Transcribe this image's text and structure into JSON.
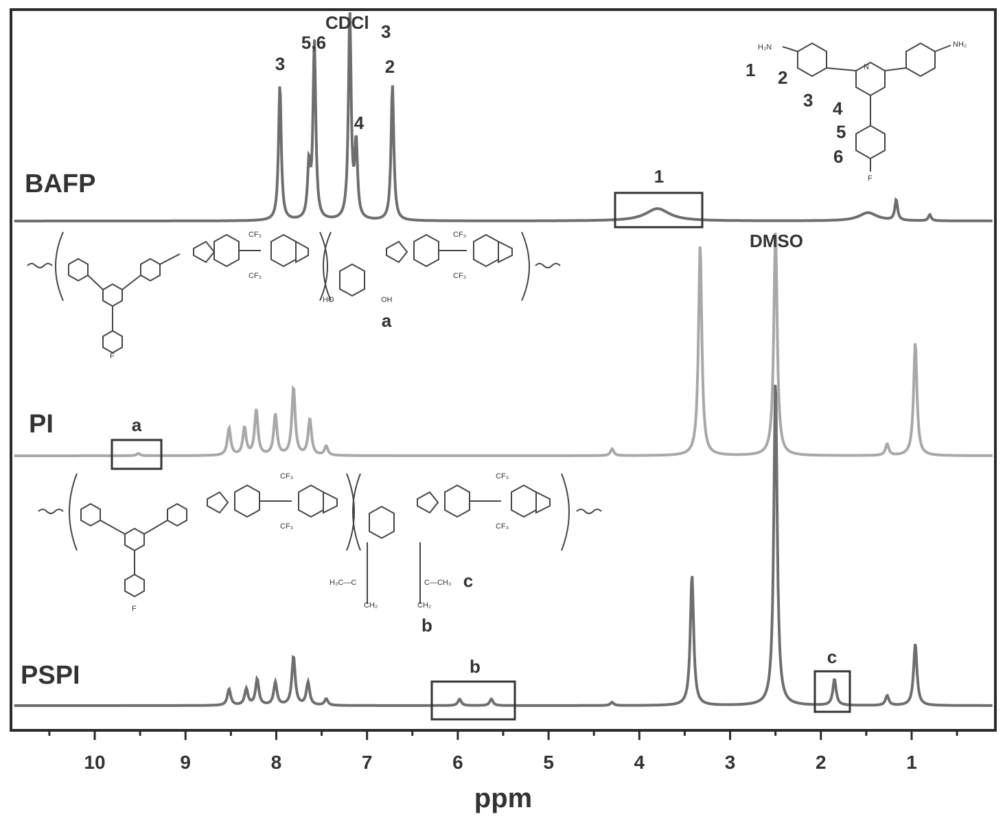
{
  "chart_data": {
    "type": "line",
    "title": "",
    "xlabel": "ppm",
    "ylabel": "",
    "x_reversed": true,
    "xlim": [
      10.95,
      0.0
    ],
    "x_ticks": [
      10,
      9,
      8,
      7,
      6,
      5,
      4,
      3,
      2,
      1
    ],
    "grid": false,
    "legend": "none",
    "series": [
      {
        "name": "BAFP",
        "color": "#6e6e6e",
        "solvent": "CDCl3",
        "peaks": [
          {
            "ppm": 7.96,
            "height": 0.66,
            "label": "3"
          },
          {
            "ppm": 7.58,
            "height": 0.86,
            "label": "5,6"
          },
          {
            "ppm": 7.64,
            "height": 0.25,
            "label": ""
          },
          {
            "ppm": 7.19,
            "height": 1.0,
            "label": "CDCl3"
          },
          {
            "ppm": 7.12,
            "height": 0.36,
            "label": "4"
          },
          {
            "ppm": 6.72,
            "height": 0.66,
            "label": "2"
          },
          {
            "ppm": 3.8,
            "height": 0.06,
            "label": "1"
          },
          {
            "ppm": 1.48,
            "height": 0.04,
            "label": ""
          },
          {
            "ppm": 1.17,
            "height": 0.1,
            "label": ""
          },
          {
            "ppm": 0.8,
            "height": 0.03,
            "label": ""
          }
        ]
      },
      {
        "name": "PI",
        "color": "#a8a8a8",
        "solvent": "DMSO",
        "peaks": [
          {
            "ppm": 9.52,
            "height": 0.01,
            "label": "a"
          },
          {
            "ppm": 8.52,
            "height": 0.12,
            "label": ""
          },
          {
            "ppm": 8.35,
            "height": 0.12,
            "label": ""
          },
          {
            "ppm": 8.22,
            "height": 0.2,
            "label": ""
          },
          {
            "ppm": 8.01,
            "height": 0.18,
            "label": ""
          },
          {
            "ppm": 7.81,
            "height": 0.3,
            "label": ""
          },
          {
            "ppm": 7.63,
            "height": 0.16,
            "label": ""
          },
          {
            "ppm": 7.45,
            "height": 0.04,
            "label": ""
          },
          {
            "ppm": 4.3,
            "height": 0.03,
            "label": ""
          },
          {
            "ppm": 3.33,
            "height": 0.93,
            "label": ""
          },
          {
            "ppm": 2.5,
            "height": 1.0,
            "label": ""
          },
          {
            "ppm": 1.27,
            "height": 0.05,
            "label": ""
          },
          {
            "ppm": 0.96,
            "height": 0.5,
            "label": ""
          }
        ]
      },
      {
        "name": "PSPI",
        "color": "#6e6e6e",
        "solvent": "DMSO",
        "peaks": [
          {
            "ppm": 8.52,
            "height": 0.05,
            "label": ""
          },
          {
            "ppm": 8.33,
            "height": 0.05,
            "label": ""
          },
          {
            "ppm": 8.21,
            "height": 0.08,
            "label": ""
          },
          {
            "ppm": 8.01,
            "height": 0.07,
            "label": ""
          },
          {
            "ppm": 7.81,
            "height": 0.15,
            "label": ""
          },
          {
            "ppm": 7.65,
            "height": 0.07,
            "label": ""
          },
          {
            "ppm": 7.45,
            "height": 0.02,
            "label": ""
          },
          {
            "ppm": 5.98,
            "height": 0.02,
            "label": "b"
          },
          {
            "ppm": 5.63,
            "height": 0.02,
            "label": "b"
          },
          {
            "ppm": 4.3,
            "height": 0.01,
            "label": ""
          },
          {
            "ppm": 3.42,
            "height": 0.4,
            "label": ""
          },
          {
            "ppm": 2.5,
            "height": 1.0,
            "label": ""
          },
          {
            "ppm": 1.85,
            "height": 0.08,
            "label": "c"
          },
          {
            "ppm": 1.27,
            "height": 0.03,
            "label": ""
          },
          {
            "ppm": 0.96,
            "height": 0.19,
            "label": ""
          }
        ]
      }
    ],
    "annotations": {
      "bafp_label": "BAFP",
      "pi_label": "PI",
      "pspi_label": "PSPI",
      "cdcl_text": "CDCl",
      "cdcl_sub": "3",
      "dmso": "DMSO",
      "p3": "3",
      "p56": "5,6",
      "p4": "4",
      "p2": "2",
      "p1": "1",
      "a_box": "a",
      "b_box": "b",
      "c_box": "c",
      "mol_a": "a",
      "mol_b": "b",
      "mol_c": "c",
      "num1": "1",
      "num2": "2",
      "num3": "3",
      "num4": "4",
      "num5": "5",
      "num6": "6"
    }
  }
}
